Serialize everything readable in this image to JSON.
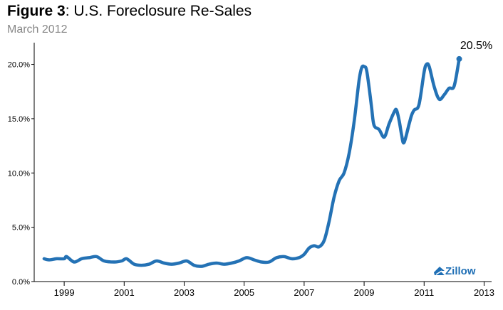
{
  "title_bold": "Figure 3",
  "title_rest": ": U.S. Foreclosure Re-Sales",
  "subtitle": "March 2012",
  "logo_text": "Zillow",
  "colors": {
    "series": "#2472b5",
    "axis": "#000000",
    "logo": "#1f6fb5"
  },
  "chart_data": {
    "type": "line",
    "title": "Figure 3: U.S. Foreclosure Re-Sales",
    "subtitle": "March 2012",
    "xlabel": "",
    "ylabel": "",
    "xlim": [
      1998.0,
      2013.25
    ],
    "ylim": [
      0,
      0.22
    ],
    "y_ticks": [
      0,
      0.05,
      0.1,
      0.15,
      0.2
    ],
    "y_tick_labels": [
      "0.0%",
      "5.0%",
      "10.0%",
      "15.0%",
      "20.0%"
    ],
    "x_ticks": [
      1999,
      2001,
      2003,
      2005,
      2007,
      2009,
      2011,
      2013
    ],
    "x_tick_labels": [
      "1999",
      "2001",
      "2003",
      "2005",
      "2007",
      "2009",
      "2011",
      "2013"
    ],
    "grid": false,
    "annotation": {
      "text": "20.5%",
      "x": 2012.17,
      "y": 0.205
    },
    "series": [
      {
        "x": [
          1998.33,
          1998.5,
          1998.75,
          1999.0,
          1999.08,
          1999.33,
          1999.58,
          1999.83,
          2000.08,
          2000.33,
          2000.67,
          2000.92,
          2001.08,
          2001.33,
          2001.58,
          2001.83,
          2002.08,
          2002.33,
          2002.58,
          2002.83,
          2003.08,
          2003.33,
          2003.58,
          2003.83,
          2004.08,
          2004.33,
          2004.58,
          2004.83,
          2005.08,
          2005.33,
          2005.58,
          2005.83,
          2006.08,
          2006.33,
          2006.58,
          2006.83,
          2007.0,
          2007.17,
          2007.33,
          2007.5,
          2007.67,
          2007.83,
          2008.0,
          2008.17,
          2008.33,
          2008.5,
          2008.67,
          2008.83,
          2008.92,
          2009.0,
          2009.08,
          2009.17,
          2009.25,
          2009.33,
          2009.5,
          2009.67,
          2009.83,
          2010.0,
          2010.08,
          2010.17,
          2010.25,
          2010.33,
          2010.5,
          2010.58,
          2010.67,
          2010.83,
          2011.0,
          2011.08,
          2011.17,
          2011.33,
          2011.5,
          2011.67,
          2011.83,
          2012.0,
          2012.17
        ],
        "values": [
          0.021,
          0.02,
          0.021,
          0.021,
          0.023,
          0.018,
          0.021,
          0.022,
          0.023,
          0.019,
          0.018,
          0.019,
          0.021,
          0.016,
          0.015,
          0.016,
          0.019,
          0.017,
          0.016,
          0.017,
          0.019,
          0.015,
          0.014,
          0.016,
          0.017,
          0.016,
          0.017,
          0.019,
          0.022,
          0.02,
          0.018,
          0.018,
          0.022,
          0.023,
          0.021,
          0.022,
          0.025,
          0.031,
          0.033,
          0.032,
          0.038,
          0.055,
          0.078,
          0.093,
          0.1,
          0.118,
          0.148,
          0.185,
          0.197,
          0.198,
          0.195,
          0.178,
          0.16,
          0.144,
          0.14,
          0.133,
          0.145,
          0.156,
          0.158,
          0.148,
          0.135,
          0.128,
          0.145,
          0.153,
          0.158,
          0.163,
          0.193,
          0.2,
          0.198,
          0.18,
          0.168,
          0.172,
          0.178,
          0.18,
          0.205
        ]
      }
    ]
  }
}
